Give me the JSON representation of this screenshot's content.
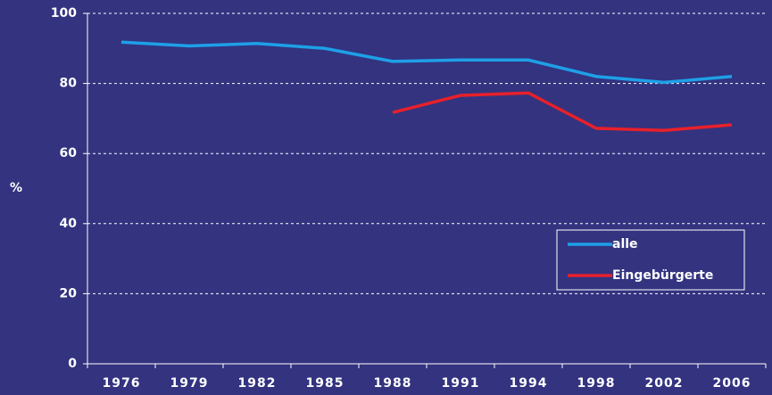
{
  "chart_data": {
    "type": "line",
    "y_label": "%",
    "categories": [
      "1976",
      "1979",
      "1982",
      "1985",
      "1988",
      "1991",
      "1994",
      "1998",
      "2002",
      "2006"
    ],
    "series": [
      {
        "name": "alle",
        "color": "#1ea0e6",
        "values": [
          91.8,
          90.7,
          91.4,
          90.0,
          86.3,
          86.7,
          86.7,
          82.0,
          80.3,
          82.0
        ]
      },
      {
        "name": "Eingebürgerte",
        "color": "#e8202a",
        "values": [
          null,
          null,
          null,
          null,
          71.7,
          76.6,
          77.3,
          67.2,
          66.6,
          68.2
        ]
      }
    ],
    "ylim": [
      0,
      100
    ],
    "yticks": [
      0,
      20,
      40,
      60,
      80,
      100
    ],
    "grid": true,
    "legend": "lower right"
  }
}
